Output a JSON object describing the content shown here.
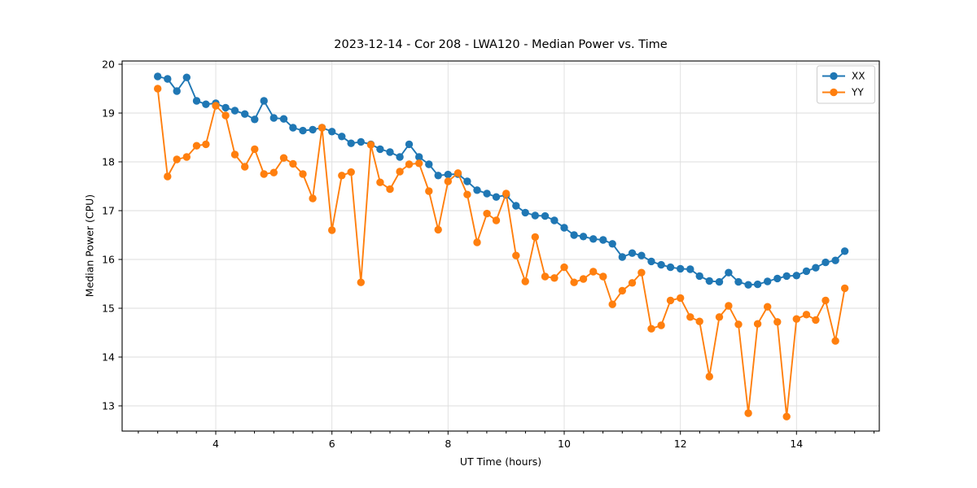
{
  "figure": {
    "title": "2023-12-14 - Cor 208 - LWA120 - Median Power vs. Time"
  },
  "chart_data": {
    "type": "line",
    "title": "2023-12-14 - Cor 208 - LWA120 - Median Power vs. Time",
    "xlabel": "UT Time (hours)",
    "ylabel": "Median Power (CPU)",
    "xlim": [
      2.388,
      15.425
    ],
    "ylim": [
      12.483,
      20.067
    ],
    "xticks": [
      4,
      6,
      8,
      10,
      12,
      14
    ],
    "yticks": [
      13,
      14,
      15,
      16,
      17,
      18,
      19,
      20
    ],
    "minor_x_interval": 0.3333,
    "grid": true,
    "grid_color": "#dedede",
    "legend_position": "upper right",
    "marker": "circle",
    "x": [
      3.0,
      3.17,
      3.33,
      3.5,
      3.67,
      3.83,
      4.0,
      4.17,
      4.33,
      4.5,
      4.67,
      4.83,
      5.0,
      5.17,
      5.33,
      5.5,
      5.67,
      5.83,
      6.0,
      6.17,
      6.33,
      6.5,
      6.67,
      6.83,
      7.0,
      7.17,
      7.33,
      7.5,
      7.67,
      7.83,
      8.0,
      8.17,
      8.33,
      8.5,
      8.67,
      8.83,
      9.0,
      9.17,
      9.33,
      9.5,
      9.67,
      9.83,
      10.0,
      10.17,
      10.33,
      10.5,
      10.67,
      10.83,
      11.0,
      11.17,
      11.33,
      11.5,
      11.67,
      11.83,
      12.0,
      12.17,
      12.33,
      12.5,
      12.67,
      12.83,
      13.0,
      13.17,
      13.33,
      13.5,
      13.67,
      13.83,
      14.0,
      14.17,
      14.33,
      14.5,
      14.67,
      14.83
    ],
    "series": [
      {
        "name": "XX",
        "color": "#1f77b4",
        "values": [
          19.75,
          19.7,
          19.45,
          19.73,
          19.25,
          19.18,
          19.2,
          19.11,
          19.05,
          18.98,
          18.87,
          19.25,
          18.9,
          18.88,
          18.7,
          18.64,
          18.66,
          18.7,
          18.62,
          18.52,
          18.38,
          18.41,
          18.36,
          18.26,
          18.2,
          18.1,
          18.36,
          18.1,
          17.95,
          17.72,
          17.74,
          17.75,
          17.6,
          17.42,
          17.35,
          17.28,
          17.32,
          17.1,
          16.96,
          16.9,
          16.89,
          16.8,
          16.65,
          16.5,
          16.47,
          16.42,
          16.4,
          16.32,
          16.05,
          16.13,
          16.08,
          15.96,
          15.89,
          15.84,
          15.81,
          15.8,
          15.66,
          15.56,
          15.54,
          15.73,
          15.54,
          15.48,
          15.49,
          15.55,
          15.61,
          15.66,
          15.67,
          15.76,
          15.83,
          15.94,
          15.98,
          16.17
        ]
      },
      {
        "name": "YY",
        "color": "#ff7f0e",
        "values": [
          19.5,
          17.7,
          18.05,
          18.1,
          18.33,
          18.36,
          19.15,
          18.95,
          18.15,
          17.9,
          18.26,
          17.75,
          17.78,
          18.08,
          17.96,
          17.75,
          17.25,
          18.7,
          16.6,
          17.72,
          17.79,
          15.53,
          18.35,
          17.58,
          17.44,
          17.8,
          17.95,
          17.97,
          17.4,
          16.61,
          17.6,
          17.77,
          17.33,
          16.35,
          16.94,
          16.8,
          17.35,
          16.08,
          15.55,
          16.46,
          15.65,
          15.62,
          15.84,
          15.53,
          15.6,
          15.75,
          15.65,
          15.08,
          15.36,
          15.52,
          15.73,
          14.58,
          14.65,
          15.16,
          15.21,
          14.82,
          14.73,
          13.6,
          14.82,
          15.05,
          14.67,
          12.85,
          14.68,
          15.03,
          14.72,
          12.78,
          14.78,
          14.87,
          14.76,
          15.16,
          14.33,
          15.41
        ]
      }
    ]
  }
}
